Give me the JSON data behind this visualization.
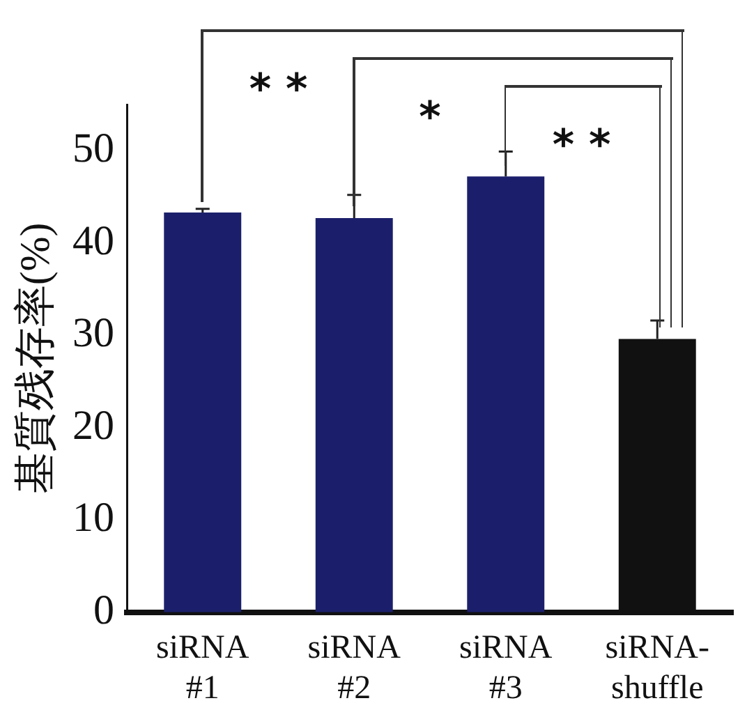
{
  "chart_data": {
    "type": "bar",
    "ylabel": "基質残存率(%)",
    "categories": [
      "siRNA #1",
      "siRNA #2",
      "siRNA #3",
      "siRNA-shuffle"
    ],
    "values": [
      43.3,
      42.7,
      47.2,
      29.6
    ],
    "colors": [
      "#1b1f6b",
      "#1b1f6b",
      "#1b1f6b",
      "#111111"
    ],
    "errors": [
      [
        43.3,
        43.7
      ],
      [
        42.7,
        45.2
      ],
      [
        47.2,
        49.9
      ],
      [
        29.6,
        31.6
      ]
    ],
    "ylim": [
      0,
      55
    ],
    "yticks": [
      0,
      10,
      20,
      30,
      40,
      50
    ],
    "grid": false,
    "legend": false,
    "annotations": [
      "* *",
      "*",
      "* *"
    ]
  }
}
